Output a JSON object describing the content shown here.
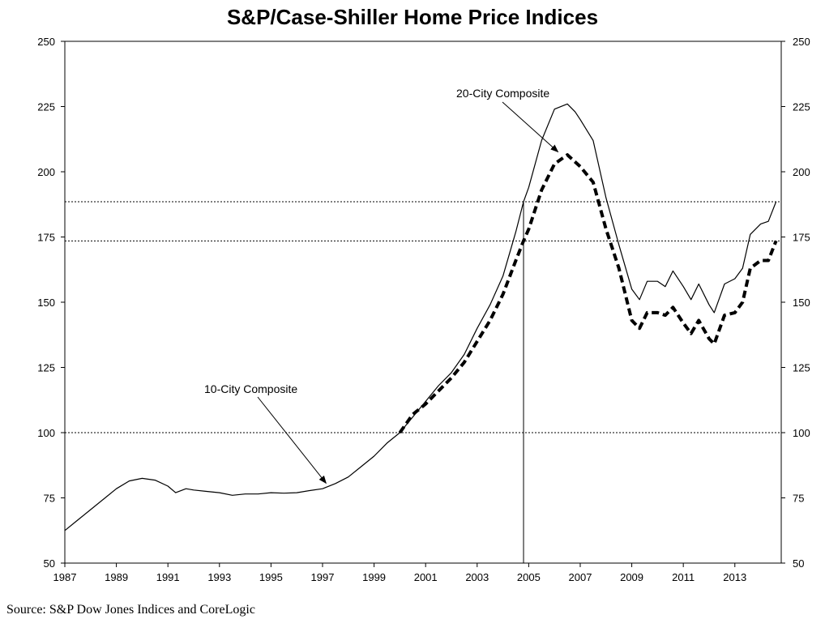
{
  "chart_data": {
    "type": "line",
    "title": "S&P/Case-Shiller Home Price Indices",
    "source": "Source: S&P Dow Jones Indices and CoreLogic",
    "xlim": [
      1987,
      2014.8
    ],
    "ylim": [
      50,
      250
    ],
    "x_ticks": [
      "1987",
      "1989",
      "1991",
      "1993",
      "1995",
      "1997",
      "1999",
      "2001",
      "2003",
      "2005",
      "2007",
      "2009",
      "2011",
      "2013"
    ],
    "y_ticks": [
      "50",
      "75",
      "100",
      "125",
      "150",
      "175",
      "200",
      "225",
      "250"
    ],
    "reference_lines": [
      {
        "axis": "y",
        "value": 100,
        "style": "dotted"
      },
      {
        "axis": "y",
        "value": 173.5,
        "style": "dotted"
      },
      {
        "axis": "y",
        "value": 188.5,
        "style": "dotted"
      },
      {
        "axis": "x",
        "value": 2004.8,
        "style": "solid"
      }
    ],
    "annotations": [
      {
        "text": "10-City Composite",
        "point": [
          1997.2,
          80
        ]
      },
      {
        "text": "20-City Composite",
        "point": [
          2006.2,
          207
        ]
      }
    ],
    "series": [
      {
        "label": "10-City Composite",
        "style": "solid",
        "points": [
          [
            1987.0,
            62.5
          ],
          [
            1987.5,
            66.5
          ],
          [
            1988.0,
            70.5
          ],
          [
            1988.5,
            74.5
          ],
          [
            1989.0,
            78.5
          ],
          [
            1989.5,
            81.5
          ],
          [
            1990.0,
            82.5
          ],
          [
            1990.5,
            81.8
          ],
          [
            1991.0,
            79.5
          ],
          [
            1991.3,
            77.0
          ],
          [
            1991.7,
            78.5
          ],
          [
            1992.0,
            78.0
          ],
          [
            1992.5,
            77.5
          ],
          [
            1993.0,
            77.0
          ],
          [
            1993.5,
            76.0
          ],
          [
            1994.0,
            76.5
          ],
          [
            1994.5,
            76.5
          ],
          [
            1995.0,
            77.0
          ],
          [
            1995.5,
            76.8
          ],
          [
            1996.0,
            77.0
          ],
          [
            1996.5,
            77.8
          ],
          [
            1997.0,
            78.5
          ],
          [
            1997.5,
            80.5
          ],
          [
            1998.0,
            83.0
          ],
          [
            1998.5,
            87.0
          ],
          [
            1999.0,
            91.0
          ],
          [
            1999.5,
            96.0
          ],
          [
            2000.0,
            100.0
          ],
          [
            2000.5,
            106.0
          ],
          [
            2001.0,
            112.0
          ],
          [
            2001.5,
            118.0
          ],
          [
            2002.0,
            123.0
          ],
          [
            2002.5,
            130.0
          ],
          [
            2003.0,
            140.0
          ],
          [
            2003.5,
            149.0
          ],
          [
            2004.0,
            160.0
          ],
          [
            2004.5,
            177.0
          ],
          [
            2004.8,
            188.5
          ],
          [
            2005.0,
            194.0
          ],
          [
            2005.5,
            212.0
          ],
          [
            2006.0,
            224.0
          ],
          [
            2006.5,
            226.0
          ],
          [
            2006.8,
            223.0
          ],
          [
            2007.0,
            220.0
          ],
          [
            2007.5,
            212.0
          ],
          [
            2008.0,
            190.0
          ],
          [
            2008.5,
            172.0
          ],
          [
            2009.0,
            155.0
          ],
          [
            2009.3,
            151.0
          ],
          [
            2009.6,
            158.0
          ],
          [
            2010.0,
            158.0
          ],
          [
            2010.3,
            156.0
          ],
          [
            2010.6,
            162.0
          ],
          [
            2011.0,
            156.0
          ],
          [
            2011.3,
            151.0
          ],
          [
            2011.6,
            157.0
          ],
          [
            2012.0,
            149.0
          ],
          [
            2012.2,
            146.0
          ],
          [
            2012.6,
            157.0
          ],
          [
            2013.0,
            159.0
          ],
          [
            2013.3,
            163.0
          ],
          [
            2013.6,
            176.0
          ],
          [
            2014.0,
            180.0
          ],
          [
            2014.3,
            181.0
          ],
          [
            2014.6,
            188.5
          ]
        ]
      },
      {
        "label": "20-City Composite",
        "style": "dashed",
        "points": [
          [
            2000.0,
            100.0
          ],
          [
            2000.5,
            107.0
          ],
          [
            2001.0,
            111.0
          ],
          [
            2001.5,
            116.0
          ],
          [
            2002.0,
            121.0
          ],
          [
            2002.5,
            127.0
          ],
          [
            2003.0,
            135.0
          ],
          [
            2003.5,
            143.0
          ],
          [
            2004.0,
            153.0
          ],
          [
            2004.5,
            166.0
          ],
          [
            2004.8,
            173.5
          ],
          [
            2005.0,
            178.0
          ],
          [
            2005.5,
            193.0
          ],
          [
            2006.0,
            203.0
          ],
          [
            2006.5,
            206.5
          ],
          [
            2007.0,
            202.0
          ],
          [
            2007.5,
            196.0
          ],
          [
            2008.0,
            178.0
          ],
          [
            2008.5,
            163.0
          ],
          [
            2009.0,
            143.0
          ],
          [
            2009.3,
            140.0
          ],
          [
            2009.6,
            146.0
          ],
          [
            2010.0,
            146.0
          ],
          [
            2010.3,
            145.0
          ],
          [
            2010.6,
            148.0
          ],
          [
            2011.0,
            142.0
          ],
          [
            2011.3,
            138.0
          ],
          [
            2011.6,
            143.0
          ],
          [
            2012.0,
            136.0
          ],
          [
            2012.2,
            134.0
          ],
          [
            2012.6,
            145.0
          ],
          [
            2013.0,
            146.0
          ],
          [
            2013.3,
            150.0
          ],
          [
            2013.6,
            163.0
          ],
          [
            2014.0,
            166.0
          ],
          [
            2014.3,
            166.0
          ],
          [
            2014.6,
            173.5
          ]
        ]
      }
    ]
  }
}
